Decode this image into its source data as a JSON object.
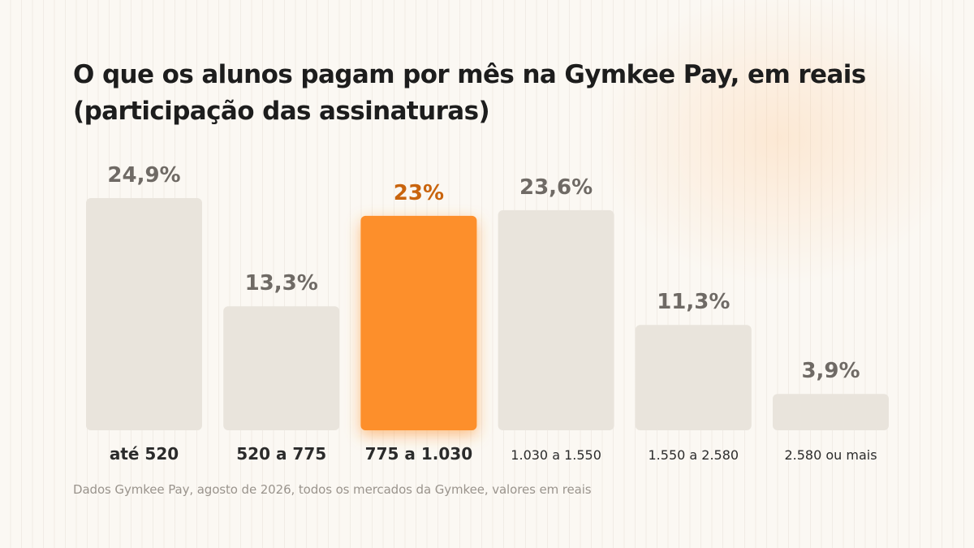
{
  "title": "O que os alunos pagam por mês na Gymkee Pay, em reais (participação das assinaturas)",
  "footnote": "Dados Gymkee Pay, agosto de 2026, todos os mercados da Gymkee, valores em reais",
  "colors": {
    "bar_default": "#e9e4dc",
    "bar_highlight": "#fd8f2b",
    "label_default": "#6f6a65",
    "label_highlight": "#c9640d",
    "category_text": "#2b2b2b"
  },
  "chart_data": {
    "type": "bar",
    "categories": [
      "até 520",
      "520 a 775",
      "775 a 1.030",
      "1.030 a 1.550",
      "1.550 a 2.580",
      "2.580 ou mais"
    ],
    "values": [
      24.9,
      13.3,
      23,
      23.6,
      11.3,
      3.9
    ],
    "value_labels": [
      "24,9%",
      "13,3%",
      "23%",
      "23,6%",
      "11,3%",
      "3,9%"
    ],
    "highlight_index": 2,
    "ylim": [
      0,
      24.9
    ],
    "grid": false,
    "legend": "none"
  }
}
